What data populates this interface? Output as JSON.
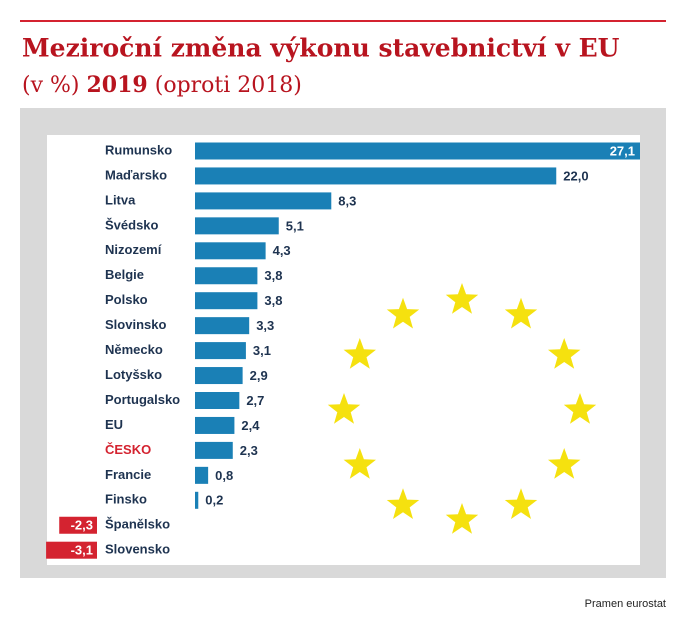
{
  "chart_data": {
    "type": "hbar",
    "title": "Meziroční změna výkonu stavebnictví v EU",
    "subtitle_parts": [
      "(v %)",
      "2019",
      "(oproti 2018)"
    ],
    "source": "Pramen eurostat",
    "categories": [
      "Rumunsko",
      "Maďarsko",
      "Litva",
      "Švédsko",
      "Nizozemí",
      "Belgie",
      "Polsko",
      "Slovinsko",
      "Německo",
      "Lotyšsko",
      "Portugalsko",
      "EU",
      "ČESKO",
      "Francie",
      "Finsko",
      "Španělsko",
      "Slovensko"
    ],
    "values": [
      27.1,
      22.0,
      8.3,
      5.1,
      4.3,
      3.8,
      3.8,
      3.3,
      3.1,
      2.9,
      2.7,
      2.4,
      2.3,
      0.8,
      0.2,
      -2.3,
      -3.1
    ],
    "value_labels": [
      "27,1",
      "22,0",
      "8,3",
      "5,1",
      "4,3",
      "3,8",
      "3,8",
      "3,3",
      "3,1",
      "2,9",
      "2,7",
      "2,4",
      "2,3",
      "0,8",
      "0,2",
      "-2,3",
      "-3,1"
    ],
    "color": "#1a80b6",
    "negative_color": "#d42330",
    "highlight_index": 12,
    "highlight_color": "#d42330"
  }
}
